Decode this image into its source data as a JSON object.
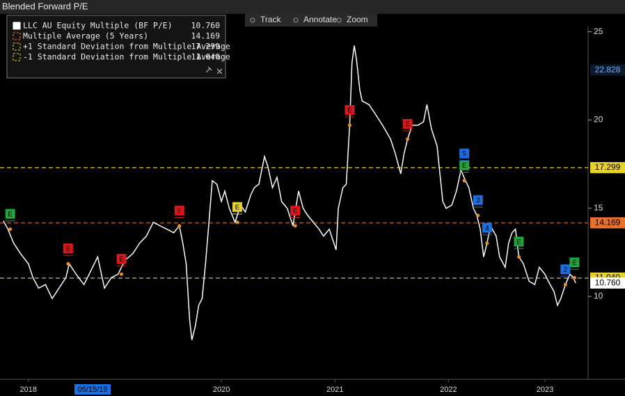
{
  "chart_data": {
    "type": "line",
    "title": "Blended Forward P/E",
    "toolbar": [
      "Track",
      "Annotate",
      "Zoom"
    ],
    "date_label": "05/15/19",
    "x": [
      2018.58,
      2018.62,
      2018.67,
      2018.73,
      2018.8,
      2018.84,
      2018.89,
      2018.95,
      2019.01,
      2019.07,
      2019.13,
      2019.16,
      2019.22,
      2019.29,
      2019.35,
      2019.41,
      2019.47,
      2019.53,
      2019.59,
      2019.65,
      2019.72,
      2019.78,
      2019.84,
      2019.9,
      2019.96,
      2020.02,
      2020.08,
      2020.13,
      2020.16,
      2020.19,
      2020.22,
      2020.24,
      2020.27,
      2020.3,
      2020.33,
      2020.36,
      2020.39,
      2020.42,
      2020.46,
      2020.5,
      2020.53,
      2020.57,
      2020.62,
      2020.67,
      2020.71,
      2020.76,
      2020.79,
      2020.83,
      2020.88,
      2020.91,
      2020.95,
      2020.99,
      2021.03,
      2021.08,
      2021.13,
      2021.18,
      2021.22,
      2021.26,
      2021.31,
      2021.36,
      2021.4,
      2021.45,
      2021.48,
      2021.51,
      2021.53,
      2021.57,
      2021.6,
      2021.63,
      2021.65,
      2021.67,
      2021.69,
      2021.72,
      2021.74,
      2021.8,
      2021.86,
      2021.92,
      2021.99,
      2022.03,
      2022.08,
      2022.11,
      2022.14,
      2022.18,
      2022.23,
      2022.28,
      2022.31,
      2022.35,
      2022.4,
      2022.45,
      2022.48,
      2022.53,
      2022.57,
      2022.61,
      2022.65,
      2022.68,
      2022.72,
      2022.75,
      2022.78,
      2022.81,
      2022.84,
      2022.87,
      2022.92,
      2022.95,
      2023.0,
      2023.03,
      2023.06,
      2023.09,
      2023.12,
      2023.16,
      2023.21,
      2023.26,
      2023.3,
      2023.35,
      2023.38,
      2023.43,
      2023.46,
      2023.49,
      2023.53,
      2023.57,
      2023.6,
      2023.62
    ],
    "series": [
      {
        "name": "LLC AU Equity Multiple (BF P/E)",
        "color": "#ffffff",
        "legend_value": {
          "value": 10.76,
          "label": "10.760"
        },
        "values": [
          14.28,
          13.81,
          13.02,
          12.43,
          11.85,
          11.06,
          10.47,
          10.67,
          9.88,
          10.47,
          11.06,
          11.85,
          11.26,
          10.67,
          11.45,
          12.24,
          10.47,
          11.06,
          11.26,
          12.04,
          12.43,
          13.02,
          13.42,
          14.2,
          14.0,
          13.81,
          13.61,
          14.0,
          13.02,
          11.85,
          8.7,
          7.53,
          8.31,
          9.49,
          9.88,
          11.85,
          14.2,
          16.56,
          16.36,
          15.38,
          15.97,
          14.99,
          14.2,
          15.18,
          14.79,
          15.77,
          16.16,
          16.36,
          17.93,
          17.34,
          16.16,
          16.75,
          15.38,
          14.99,
          14.0,
          15.97,
          14.99,
          14.59,
          14.2,
          13.81,
          13.42,
          13.81,
          13.22,
          12.63,
          14.99,
          16.16,
          16.36,
          19.7,
          23.23,
          24.21,
          23.43,
          21.66,
          21.07,
          20.87,
          20.29,
          19.7,
          18.91,
          18.13,
          16.95,
          18.13,
          18.91,
          19.7,
          19.7,
          19.89,
          20.87,
          19.5,
          18.52,
          15.38,
          14.99,
          15.18,
          15.97,
          17.15,
          16.56,
          16.16,
          14.99,
          14.59,
          13.81,
          12.24,
          13.02,
          14.0,
          13.42,
          12.24,
          11.65,
          13.02,
          13.61,
          13.81,
          12.24,
          11.85,
          10.86,
          10.67,
          11.65,
          11.26,
          10.86,
          10.27,
          9.49,
          9.88,
          10.67,
          11.26,
          11.06,
          10.76
        ]
      }
    ],
    "reference_lines": [
      {
        "name": "Multiple Average (5 Years)",
        "color": "#e8702a",
        "value": {
          "value": 14.169,
          "label": "14.169"
        }
      },
      {
        "name": "+1 Standard Deviation from Multiple Average",
        "color": "#e6d22a",
        "value": {
          "value": 17.299,
          "label": "17.299"
        }
      },
      {
        "name": "-1 Standard Deviation from Multiple Average",
        "color": "#e6d22a",
        "value": {
          "value": 11.04,
          "label": "11.040"
        }
      }
    ],
    "crosshair_value": 22.828,
    "events": [
      {
        "x": 2018.64,
        "label": "E",
        "color": "#1fa53a"
      },
      {
        "x": 2019.15,
        "label": "E",
        "color": "#d8181c"
      },
      {
        "x": 2019.62,
        "label": "E",
        "color": "#d8181c"
      },
      {
        "x": 2020.13,
        "label": "E",
        "color": "#d8181c"
      },
      {
        "x": 2020.64,
        "label": "E",
        "color": "#e6d22a"
      },
      {
        "x": 2021.15,
        "label": "E",
        "color": "#d8181c"
      },
      {
        "x": 2021.63,
        "label": "E",
        "color": "#d8181c"
      },
      {
        "x": 2022.14,
        "label": "E",
        "color": "#d8181c"
      },
      {
        "x": 2022.64,
        "label": "E",
        "color": "#1fa53a"
      },
      {
        "x": 2022.64,
        "label": "5",
        "color": "#1c6ee0"
      },
      {
        "x": 2022.76,
        "label": "3",
        "color": "#1c6ee0"
      },
      {
        "x": 2022.84,
        "label": "4",
        "color": "#1c6ee0"
      },
      {
        "x": 2023.12,
        "label": "E",
        "color": "#1fa53a"
      },
      {
        "x": 2023.53,
        "label": "2",
        "color": "#1c6ee0"
      },
      {
        "x": 2023.61,
        "label": "E",
        "color": "#1fa53a"
      }
    ],
    "xlim": [
      2018.55,
      2023.73
    ],
    "xticks": [
      {
        "value": 2018.8,
        "label": "2018"
      },
      {
        "value": 2020.5,
        "label": "2020"
      },
      {
        "value": 2021.5,
        "label": "2021"
      },
      {
        "value": 2022.5,
        "label": "2022"
      },
      {
        "value": 2023.35,
        "label": "2023"
      }
    ],
    "ylim": [
      5.5,
      25.3
    ],
    "yticks": [
      10,
      15,
      20,
      25
    ]
  }
}
